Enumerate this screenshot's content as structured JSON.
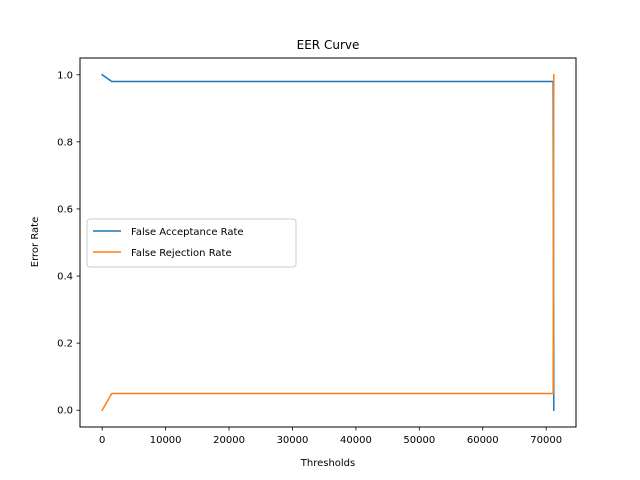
{
  "chart_data": {
    "type": "line",
    "title": "EER Curve",
    "xlabel": "Thresholds",
    "ylabel": "Error Rate",
    "xlim": [
      -3500,
      74700
    ],
    "ylim": [
      -0.05,
      1.05
    ],
    "xticks": [
      0,
      10000,
      20000,
      30000,
      40000,
      50000,
      60000,
      70000
    ],
    "yticks": [
      0.0,
      0.2,
      0.4,
      0.6,
      0.8,
      1.0
    ],
    "grid": false,
    "legend_position": "center-left",
    "series": [
      {
        "name": "False Acceptance Rate",
        "color": "#1f77b4",
        "x": [
          0,
          1500,
          71100,
          71200
        ],
        "y": [
          1.0,
          0.98,
          0.98,
          0.0
        ]
      },
      {
        "name": "False Rejection Rate",
        "color": "#ff7f0e",
        "x": [
          0,
          1500,
          71100,
          71200
        ],
        "y": [
          0.0,
          0.05,
          0.05,
          1.0
        ]
      }
    ]
  }
}
